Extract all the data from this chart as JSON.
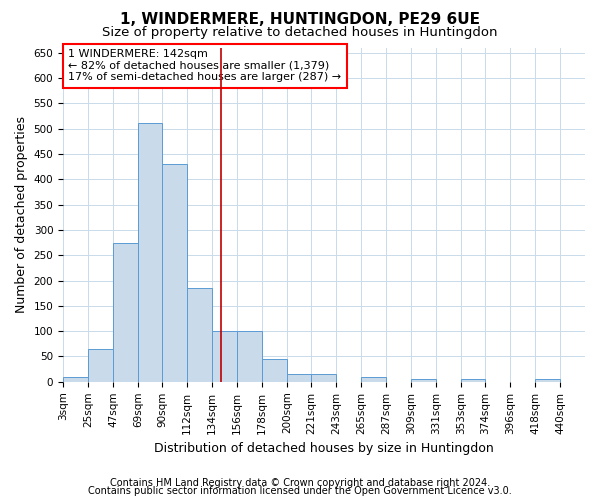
{
  "title": "1, WINDERMERE, HUNTINGDON, PE29 6UE",
  "subtitle": "Size of property relative to detached houses in Huntingdon",
  "xlabel": "Distribution of detached houses by size in Huntingdon",
  "ylabel": "Number of detached properties",
  "footnote1": "Contains HM Land Registry data © Crown copyright and database right 2024.",
  "footnote2": "Contains public sector information licensed under the Open Government Licence v3.0.",
  "annotation_line1": "1 WINDERMERE: 142sqm",
  "annotation_line2": "← 82% of detached houses are smaller (1,379)",
  "annotation_line3": "17% of semi-detached houses are larger (287) →",
  "bar_left_edges": [
    3,
    25,
    47,
    69,
    90,
    112,
    134,
    156,
    178,
    200,
    221,
    243,
    265,
    287,
    309,
    331,
    353,
    374,
    396,
    418
  ],
  "bar_widths": [
    22,
    22,
    22,
    21,
    22,
    22,
    22,
    22,
    22,
    21,
    22,
    22,
    22,
    22,
    22,
    22,
    21,
    22,
    22,
    22
  ],
  "bar_heights": [
    10,
    65,
    275,
    510,
    430,
    185,
    100,
    100,
    45,
    15,
    15,
    0,
    10,
    0,
    5,
    0,
    5,
    0,
    0,
    5
  ],
  "bar_color": "#c9daea",
  "bar_edge_color": "#5b9bd5",
  "vline_color": "#c00000",
  "vline_x": 142,
  "xlim": [
    3,
    462
  ],
  "ylim": [
    0,
    660
  ],
  "yticks": [
    0,
    50,
    100,
    150,
    200,
    250,
    300,
    350,
    400,
    450,
    500,
    550,
    600,
    650
  ],
  "tick_labels": [
    "3sqm",
    "25sqm",
    "47sqm",
    "69sqm",
    "90sqm",
    "112sqm",
    "134sqm",
    "156sqm",
    "178sqm",
    "200sqm",
    "221sqm",
    "243sqm",
    "265sqm",
    "287sqm",
    "309sqm",
    "331sqm",
    "353sqm",
    "374sqm",
    "396sqm",
    "418sqm",
    "440sqm"
  ],
  "tick_positions": [
    3,
    25,
    47,
    69,
    90,
    112,
    134,
    156,
    178,
    200,
    221,
    243,
    265,
    287,
    309,
    331,
    353,
    374,
    396,
    418,
    440
  ],
  "bg_color": "#ffffff",
  "grid_color": "#c9daea",
  "title_fontsize": 11,
  "subtitle_fontsize": 9.5,
  "axis_label_fontsize": 9,
  "tick_fontsize": 7.5,
  "annotation_fontsize": 8,
  "footnote_fontsize": 7
}
